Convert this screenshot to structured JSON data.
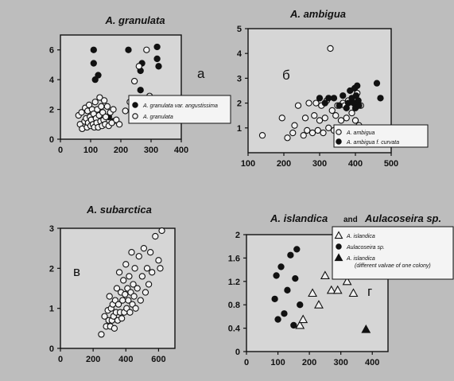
{
  "colors": {
    "background": "#bdbdbd",
    "panel": "#d6d6d6",
    "ink": "#111111",
    "open_fill": "#f2f2f2"
  },
  "chart_data": [
    {
      "id": "a",
      "type": "scatter",
      "title": "A. granulata",
      "panel_letter": "а",
      "xlim": [
        0,
        400
      ],
      "ylim": [
        0,
        7
      ],
      "xticks": [
        "0",
        "100",
        "200",
        "300",
        "400"
      ],
      "yticks": [
        "0",
        "2",
        "4",
        "6"
      ],
      "xlabel": "",
      "ylabel": "",
      "legend_position": "right",
      "series": [
        {
          "name": "A. granulata var. angustissima",
          "marker": "filled-circle",
          "points": [
            [
              110,
              6.0
            ],
            [
              110,
              5.1
            ],
            [
              115,
              4.0
            ],
            [
              125,
              4.3
            ],
            [
              160,
              1.5
            ],
            [
              175,
              1.2
            ],
            [
              225,
              6.0
            ],
            [
              265,
              4.6
            ],
            [
              265,
              3.3
            ],
            [
              270,
              5.1
            ],
            [
              320,
              6.2
            ],
            [
              320,
              5.4
            ],
            [
              325,
              4.9
            ]
          ]
        },
        {
          "name": "A. granulata",
          "marker": "open-circle",
          "points": [
            [
              60,
              1.6
            ],
            [
              65,
              1.0
            ],
            [
              70,
              1.8
            ],
            [
              72,
              0.7
            ],
            [
              80,
              1.2
            ],
            [
              82,
              2.1
            ],
            [
              85,
              1.4
            ],
            [
              88,
              0.8
            ],
            [
              90,
              1.9
            ],
            [
              92,
              1.1
            ],
            [
              95,
              2.3
            ],
            [
              98,
              1.5
            ],
            [
              100,
              0.9
            ],
            [
              102,
              1.3
            ],
            [
              105,
              2.0
            ],
            [
              108,
              1.0
            ],
            [
              110,
              1.7
            ],
            [
              112,
              0.8
            ],
            [
              115,
              2.5
            ],
            [
              118,
              1.4
            ],
            [
              120,
              1.1
            ],
            [
              122,
              2.0
            ],
            [
              125,
              0.8
            ],
            [
              128,
              1.6
            ],
            [
              130,
              2.8
            ],
            [
              133,
              1.2
            ],
            [
              135,
              2.2
            ],
            [
              138,
              0.9
            ],
            [
              140,
              1.8
            ],
            [
              143,
              1.3
            ],
            [
              145,
              2.6
            ],
            [
              148,
              1.0
            ],
            [
              150,
              1.5
            ],
            [
              155,
              2.2
            ],
            [
              160,
              0.9
            ],
            [
              165,
              1.8
            ],
            [
              170,
              1.1
            ],
            [
              175,
              2.0
            ],
            [
              185,
              1.3
            ],
            [
              195,
              1.0
            ],
            [
              215,
              1.9
            ],
            [
              230,
              2.5
            ],
            [
              245,
              3.9
            ],
            [
              260,
              4.9
            ],
            [
              285,
              6.0
            ],
            [
              295,
              2.9
            ]
          ]
        }
      ]
    },
    {
      "id": "b",
      "type": "scatter",
      "title": "A. ambigua",
      "panel_letter": "б",
      "xlim": [
        100,
        500
      ],
      "ylim": [
        0,
        5
      ],
      "xticks": [
        "100",
        "200",
        "300",
        "400",
        "500"
      ],
      "yticks": [
        "1",
        "2",
        "3",
        "4",
        "5"
      ],
      "xlabel": "",
      "ylabel": "",
      "legend_position": "bottom-right",
      "series": [
        {
          "name": "A. ambigua",
          "marker": "open-circle",
          "points": [
            [
              140,
              0.7
            ],
            [
              195,
              1.4
            ],
            [
              210,
              0.6
            ],
            [
              225,
              0.8
            ],
            [
              230,
              1.1
            ],
            [
              240,
              1.9
            ],
            [
              255,
              0.7
            ],
            [
              260,
              1.4
            ],
            [
              265,
              0.9
            ],
            [
              270,
              2.0
            ],
            [
              280,
              0.8
            ],
            [
              285,
              1.5
            ],
            [
              290,
              2.0
            ],
            [
              295,
              0.9
            ],
            [
              300,
              1.3
            ],
            [
              305,
              1.9
            ],
            [
              310,
              0.8
            ],
            [
              315,
              1.4
            ],
            [
              320,
              2.1
            ],
            [
              325,
              1.0
            ],
            [
              330,
              4.2
            ],
            [
              335,
              1.7
            ],
            [
              340,
              0.9
            ],
            [
              345,
              1.5
            ],
            [
              350,
              1.9
            ],
            [
              355,
              0.8
            ],
            [
              360,
              1.3
            ],
            [
              365,
              2.0
            ],
            [
              370,
              1.9
            ],
            [
              375,
              1.4
            ],
            [
              380,
              2.1
            ],
            [
              385,
              1.0
            ],
            [
              390,
              1.6
            ],
            [
              395,
              2.2
            ],
            [
              400,
              1.3
            ],
            [
              405,
              1.9
            ],
            [
              405,
              2.4
            ],
            [
              410,
              1.1
            ],
            [
              415,
              1.9
            ]
          ]
        },
        {
          "name": "A. ambigua f. curvata",
          "marker": "filled-circle",
          "points": [
            [
              300,
              2.2
            ],
            [
              315,
              2.0
            ],
            [
              325,
              2.2
            ],
            [
              340,
              2.2
            ],
            [
              355,
              1.9
            ],
            [
              365,
              2.3
            ],
            [
              375,
              1.8
            ],
            [
              380,
              2.0
            ],
            [
              385,
              2.5
            ],
            [
              390,
              2.2
            ],
            [
              395,
              2.0
            ],
            [
              398,
              2.6
            ],
            [
              400,
              1.8
            ],
            [
              402,
              2.3
            ],
            [
              405,
              2.7
            ],
            [
              408,
              2.1
            ],
            [
              410,
              1.9
            ],
            [
              460,
              2.8
            ],
            [
              470,
              2.2
            ]
          ]
        }
      ]
    },
    {
      "id": "v",
      "type": "scatter",
      "title": "A. subarctica",
      "panel_letter": "в",
      "xlim": [
        0,
        700
      ],
      "ylim": [
        0,
        3
      ],
      "xticks": [
        "0",
        "200",
        "400",
        "600"
      ],
      "yticks": [
        "0",
        "1",
        "2",
        "3"
      ],
      "xlabel": "",
      "ylabel": "",
      "series": [
        {
          "name": "",
          "marker": "open-circle",
          "points": [
            [
              250,
              0.35
            ],
            [
              270,
              0.8
            ],
            [
              280,
              0.55
            ],
            [
              290,
              0.95
            ],
            [
              295,
              0.7
            ],
            [
              300,
              1.3
            ],
            [
              305,
              0.55
            ],
            [
              310,
              1.0
            ],
            [
              315,
              0.7
            ],
            [
              320,
              1.1
            ],
            [
              325,
              0.8
            ],
            [
              330,
              0.5
            ],
            [
              335,
              1.2
            ],
            [
              340,
              0.9
            ],
            [
              345,
              1.5
            ],
            [
              350,
              0.7
            ],
            [
              355,
              1.1
            ],
            [
              360,
              1.9
            ],
            [
              365,
              0.9
            ],
            [
              370,
              1.4
            ],
            [
              375,
              0.75
            ],
            [
              380,
              1.2
            ],
            [
              385,
              1.7
            ],
            [
              390,
              0.9
            ],
            [
              395,
              1.35
            ],
            [
              400,
              2.1
            ],
            [
              405,
              1.0
            ],
            [
              410,
              1.5
            ],
            [
              415,
              1.2
            ],
            [
              420,
              1.8
            ],
            [
              425,
              0.9
            ],
            [
              430,
              1.4
            ],
            [
              435,
              2.4
            ],
            [
              440,
              1.1
            ],
            [
              445,
              1.6
            ],
            [
              450,
              1.3
            ],
            [
              455,
              2.0
            ],
            [
              460,
              1.0
            ],
            [
              470,
              1.5
            ],
            [
              480,
              2.3
            ],
            [
              490,
              1.2
            ],
            [
              500,
              1.8
            ],
            [
              510,
              2.5
            ],
            [
              520,
              1.4
            ],
            [
              530,
              2.0
            ],
            [
              540,
              1.6
            ],
            [
              550,
              2.4
            ],
            [
              560,
              1.9
            ],
            [
              580,
              2.8
            ],
            [
              600,
              2.2
            ],
            [
              610,
              2.0
            ],
            [
              620,
              3.0
            ]
          ]
        }
      ]
    },
    {
      "id": "g",
      "type": "scatter",
      "title": "A. islandica",
      "title_join": "and",
      "title2": "Aulacoseira sp.",
      "panel_letter": "г",
      "xlim": [
        0,
        450
      ],
      "ylim": [
        0,
        2.0
      ],
      "xticks": [
        "0",
        "100",
        "200",
        "300",
        "400"
      ],
      "yticks": [
        "0",
        "0.4",
        "0.8",
        "1.2",
        "1.6",
        "2"
      ],
      "xlabel": "",
      "ylabel": "",
      "legend_position": "top-right",
      "series": [
        {
          "name": "A. islandica",
          "marker": "open-triangle",
          "points": [
            [
              170,
              0.45
            ],
            [
              180,
              0.55
            ],
            [
              210,
              1.0
            ],
            [
              230,
              0.8
            ],
            [
              250,
              1.3
            ],
            [
              270,
              1.05
            ],
            [
              290,
              1.05
            ],
            [
              300,
              1.35
            ],
            [
              320,
              1.2
            ],
            [
              340,
              1.0
            ]
          ]
        },
        {
          "name": "Aulacoseira sp.",
          "marker": "filled-circle",
          "points": [
            [
              90,
              0.9
            ],
            [
              95,
              1.3
            ],
            [
              100,
              0.55
            ],
            [
              110,
              1.45
            ],
            [
              120,
              0.65
            ],
            [
              130,
              1.05
            ],
            [
              140,
              1.65
            ],
            [
              150,
              0.45
            ],
            [
              155,
              1.25
            ],
            [
              160,
              1.75
            ],
            [
              170,
              0.8
            ]
          ]
        },
        {
          "name": "A. islandica (different valvae of one colony)",
          "marker": "filled-triangle",
          "points": [
            [
              380,
              0.38
            ]
          ]
        }
      ]
    }
  ]
}
